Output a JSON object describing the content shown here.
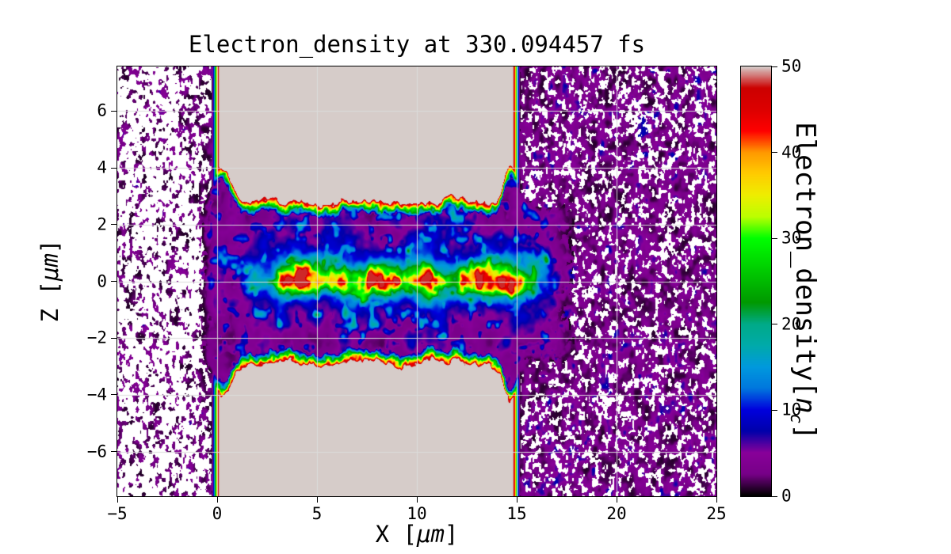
{
  "title": "Electron_density at 330.094457 fs",
  "axes": {
    "x": {
      "label_pre": "X [",
      "label_math": "μm",
      "label_post": "]",
      "tick_labels": [
        "−5",
        "0",
        "5",
        "10",
        "15",
        "20",
        "25"
      ],
      "tick_values": [
        -5,
        0,
        5,
        10,
        15,
        20,
        25
      ],
      "range": [
        -5,
        25
      ]
    },
    "z": {
      "label_pre": "Z [",
      "label_math": "μm",
      "label_post": "]",
      "tick_labels": [
        "−6",
        "−4",
        "−2",
        "0",
        "2",
        "4",
        "6"
      ],
      "tick_values": [
        -6,
        -4,
        -2,
        0,
        2,
        4,
        6
      ],
      "range": [
        -7.575,
        7.575
      ]
    }
  },
  "colorbar": {
    "label_pre": "Electron_density[",
    "label_var": "n",
    "label_sub": "c",
    "label_post": "]",
    "tick_labels": [
      "0",
      "10",
      "20",
      "30",
      "40",
      "50"
    ],
    "tick_values": [
      0,
      10,
      20,
      30,
      40,
      50
    ],
    "range": [
      0,
      50
    ]
  },
  "chart_data": {
    "type": "heatmap",
    "title": "Electron_density at 330.094457 fs",
    "xlabel": "X [μm]",
    "ylabel": "Z [μm]",
    "colorbar_label": "Electron_density[n_c]",
    "time_fs": 330.094457,
    "xlim": [
      -5,
      25
    ],
    "ylim": [
      -7.575,
      7.575
    ],
    "clim": [
      0,
      50
    ],
    "grid": true,
    "colormap": "nipy_spectral",
    "colormap_stops": [
      [
        0.0,
        0.0,
        0.0,
        0.0
      ],
      [
        0.05,
        0.4667,
        0.0,
        0.5333
      ],
      [
        0.1,
        0.5333,
        0.0,
        0.6
      ],
      [
        0.15,
        0.0,
        0.0,
        0.6667
      ],
      [
        0.2,
        0.0,
        0.0,
        0.8667
      ],
      [
        0.25,
        0.0,
        0.4667,
        0.8667
      ],
      [
        0.3,
        0.0,
        0.6,
        0.8667
      ],
      [
        0.35,
        0.0,
        0.6667,
        0.6667
      ],
      [
        0.4,
        0.0,
        0.6667,
        0.5333
      ],
      [
        0.45,
        0.0,
        0.6,
        0.0
      ],
      [
        0.5,
        0.0,
        0.7333,
        0.0
      ],
      [
        0.55,
        0.0,
        0.8667,
        0.0
      ],
      [
        0.6,
        0.0,
        1.0,
        0.0
      ],
      [
        0.65,
        0.7333,
        1.0,
        0.0
      ],
      [
        0.7,
        0.9333,
        0.9333,
        0.0
      ],
      [
        0.75,
        1.0,
        0.8,
        0.0
      ],
      [
        0.8,
        1.0,
        0.6,
        0.0
      ],
      [
        0.85,
        1.0,
        0.0,
        0.0
      ],
      [
        0.9,
        0.8667,
        0.0,
        0.0
      ],
      [
        0.95,
        0.8,
        0.0,
        0.0
      ],
      [
        1.0,
        0.84,
        0.8,
        0.79
      ]
    ],
    "features": {
      "description": "Laser-plasma simulation slice: two overdense target slabs (>=50 nc) spanning x 0-15 um above z ~ +2.5 um and below z ~ -2.6 um with rainbow density-gradient edges, an underdense channel between them containing an on-axis filament (peak ~45 nc, x ~ 3-15 um, z ~ 0) in a blue halo over purple mottled plasma, sparse low-density speckle in vacuum at x < 0 and dense purple speckle at x > 15",
      "upper_slab": {
        "x_range": [
          0,
          15
        ],
        "z_edge": 2.55,
        "density": 50
      },
      "lower_slab": {
        "x_range": [
          0,
          15
        ],
        "z_edge": -2.62,
        "density": 50
      },
      "edge_ramp_um": 0.5,
      "edge_shoulder": {
        "amplitude": 1.25,
        "x_positions": [
          0.25,
          14.7
        ]
      },
      "channel": {
        "x_range": [
          -0.6,
          18
        ],
        "base_density": [
          1.5,
          11
        ],
        "blue_patch_density": 14
      },
      "filament": {
        "x_range": [
          2.7,
          16
        ],
        "z_center": 0.05,
        "z_sigma": 0.42,
        "peak_density": 45,
        "halo_density": 10,
        "halo_sigma": 1.1
      },
      "left_speckle": {
        "x_range": [
          -5,
          0
        ],
        "coverage": 0.26,
        "density_range": [
          0.6,
          6
        ]
      },
      "right_speckle": {
        "x_range": [
          15,
          25
        ],
        "coverage": 0.75,
        "density_range": [
          0.7,
          8
        ]
      }
    }
  }
}
